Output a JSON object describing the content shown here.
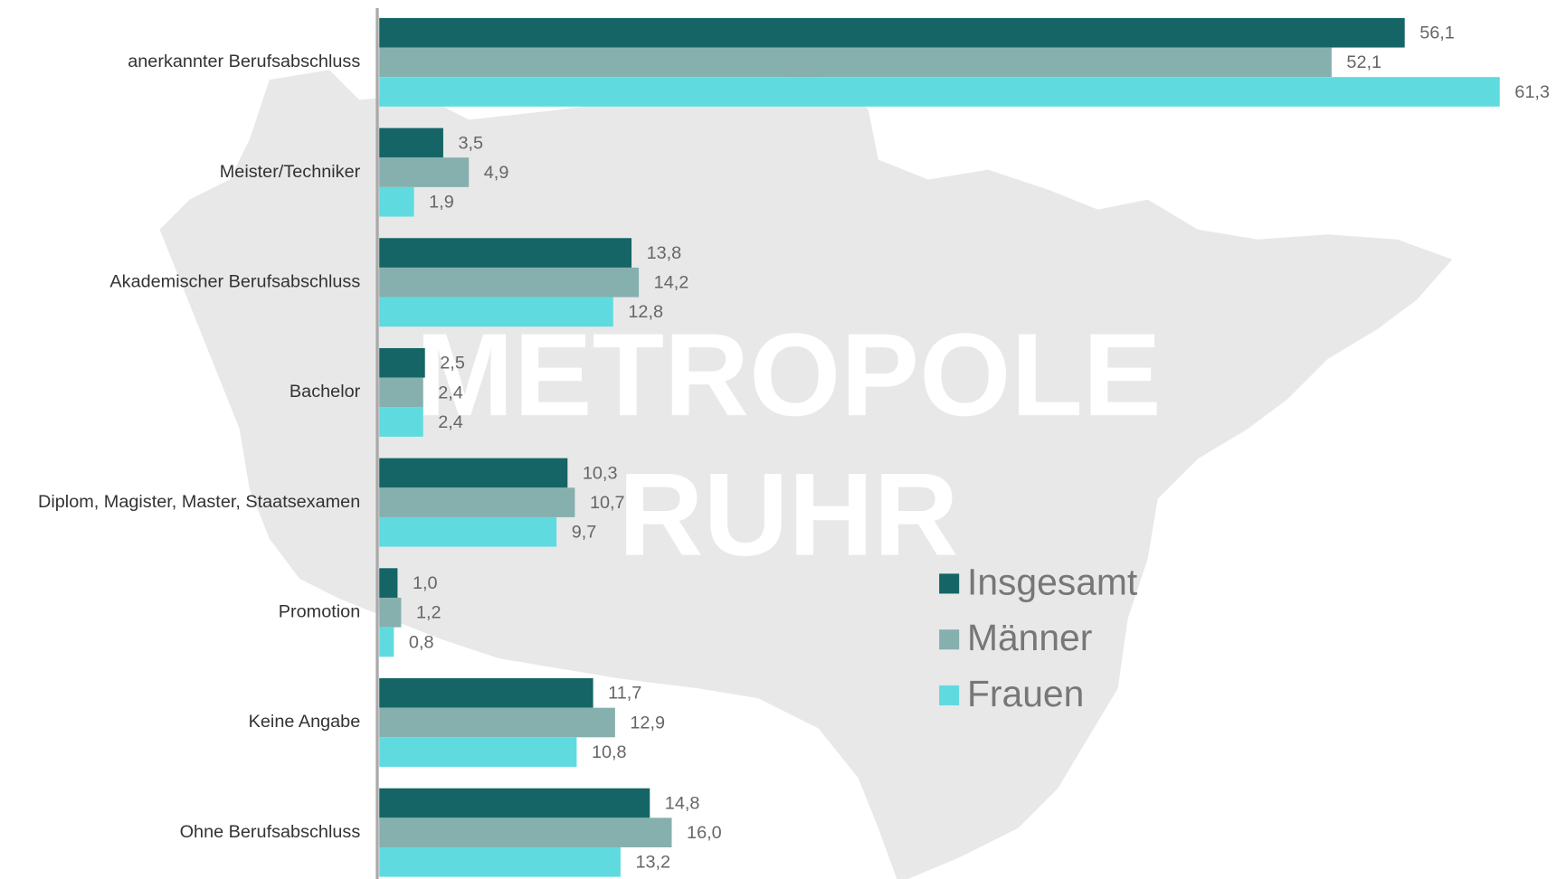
{
  "chart_data": {
    "type": "bar",
    "orientation": "horizontal",
    "watermark": [
      "METROPOLE",
      "RUHR"
    ],
    "categories": [
      "anerkannter Berufsabschluss",
      "Meister/Techniker",
      "Akademischer Berufsabschluss",
      "Bachelor",
      "Diplom, Magister, Master, Staatsexamen",
      "Promotion",
      "Keine Angabe",
      "Ohne Berufsabschluss"
    ],
    "series": [
      {
        "name": "Insgesamt",
        "color": "#156566",
        "values": [
          56.1,
          3.5,
          13.8,
          2.5,
          10.3,
          1.0,
          11.7,
          14.8
        ],
        "value_labels": [
          "56,1",
          "3,5",
          "13,8",
          "2,5",
          "10,3",
          "1,0",
          "11,7",
          "14,8"
        ]
      },
      {
        "name": "Männer",
        "color": "#86b0ae",
        "values": [
          52.1,
          4.9,
          14.2,
          2.4,
          10.7,
          1.2,
          12.9,
          16.0
        ],
        "value_labels": [
          "52,1",
          "4,9",
          "14,2",
          "2,4",
          "10,7",
          "1,2",
          "12,9",
          "16,0"
        ]
      },
      {
        "name": "Frauen",
        "color": "#5fdbe0",
        "values": [
          61.3,
          1.9,
          12.8,
          2.4,
          9.7,
          0.8,
          10.8,
          13.2
        ],
        "value_labels": [
          "61,3",
          "1,9",
          "12,8",
          "2,4",
          "9,7",
          "0,8",
          "10,8",
          "13,2"
        ]
      }
    ],
    "xlim": [
      0,
      70
    ],
    "legend": "lower right"
  }
}
